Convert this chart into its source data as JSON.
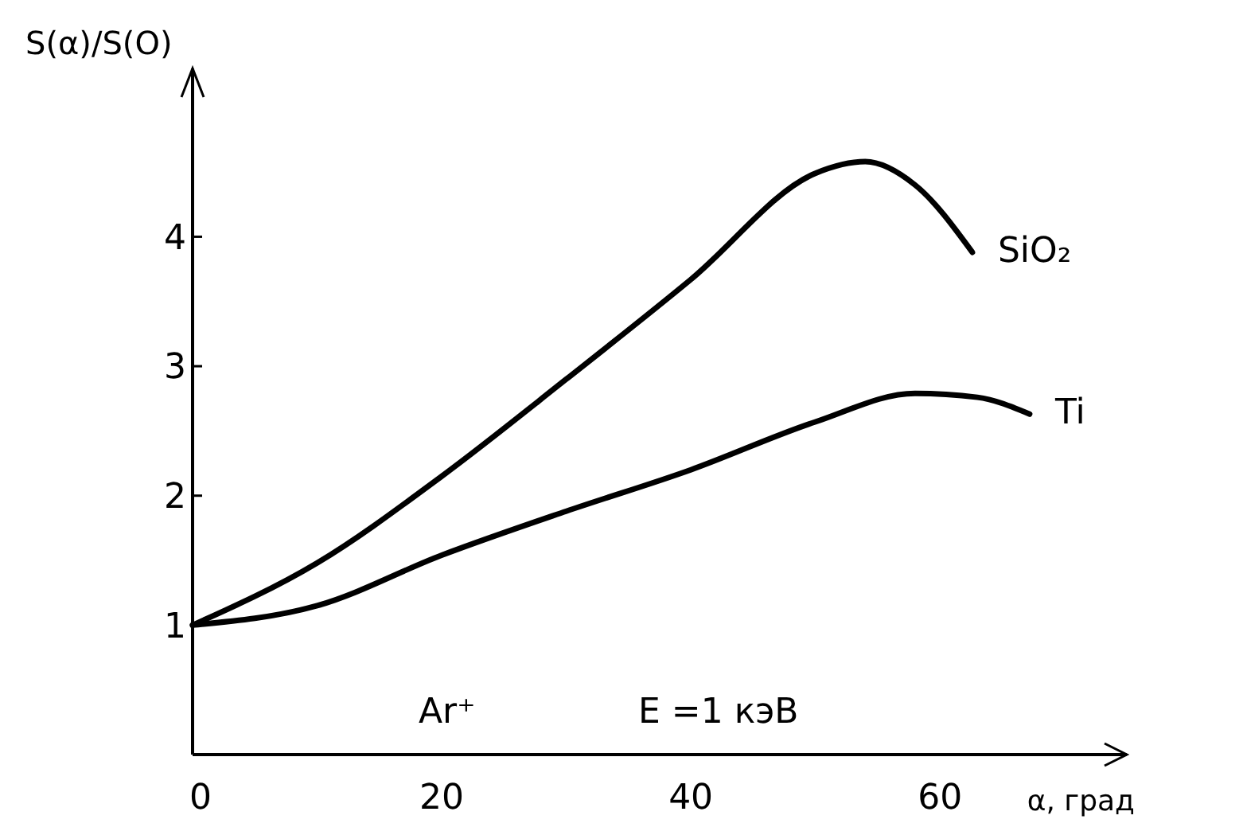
{
  "chart_data": {
    "type": "line",
    "xlabel": "α, град",
    "ylabel": "S(α)/S(O)",
    "xlim": [
      0,
      75
    ],
    "ylim": [
      0,
      5.3
    ],
    "xticks": [
      0,
      20,
      40,
      60
    ],
    "yticks": [
      1,
      2,
      3,
      4
    ],
    "grid": false,
    "marker": "none",
    "line_style": "solid",
    "annotations": [
      "Ar⁺",
      "E =1 кэВ"
    ],
    "series": [
      {
        "name": "SiO₂",
        "color": "#000000",
        "x": [
          0,
          10,
          20,
          30,
          40,
          50,
          54,
          58,
          62.6
        ],
        "values": [
          1,
          1.48,
          2.15,
          2.9,
          3.67,
          4.49,
          4.58,
          4.4,
          3.88
        ]
      },
      {
        "name": "Ti",
        "color": "#000000",
        "x": [
          0,
          10,
          20,
          30,
          40,
          50,
          58,
          63,
          67.2
        ],
        "values": [
          1,
          1.15,
          1.54,
          1.88,
          2.2,
          2.57,
          2.79,
          2.76,
          2.63
        ]
      }
    ]
  }
}
